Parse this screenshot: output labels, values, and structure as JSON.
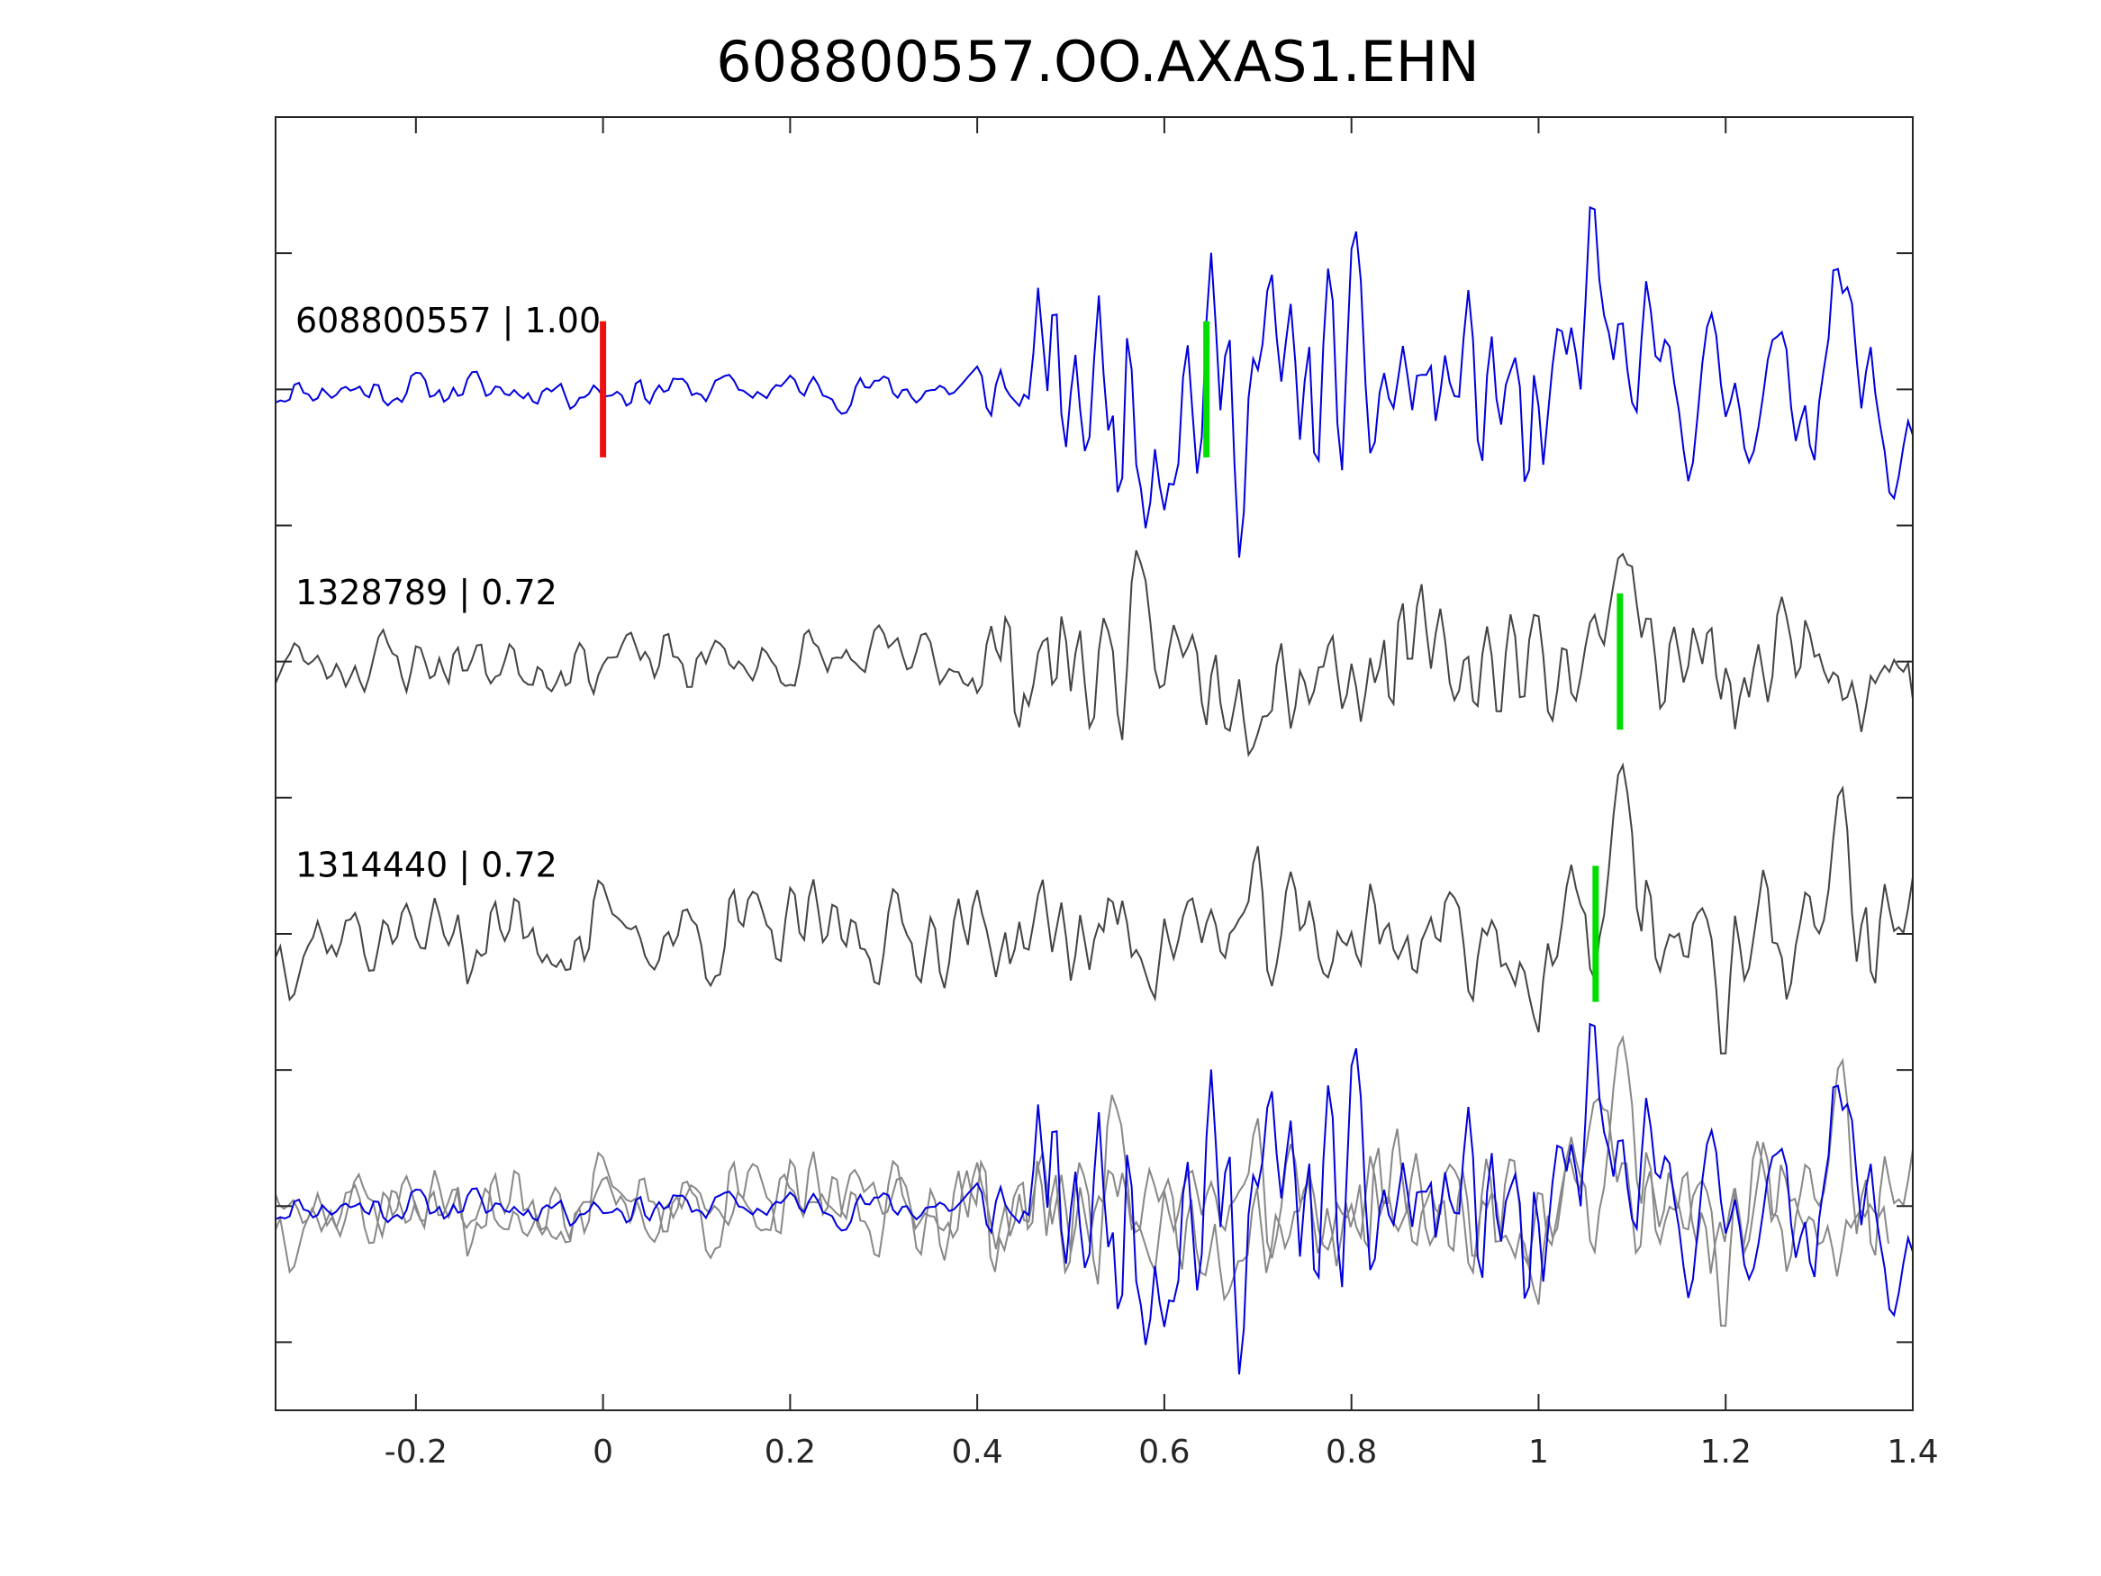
{
  "chart_data": {
    "type": "line",
    "title": "608800557.OO.AXAS1.EHN",
    "xlabel": "",
    "ylabel": "",
    "xlim": [
      -0.35,
      1.4
    ],
    "ylim": [
      0,
      9.5
    ],
    "xticks": [
      -0.2,
      0,
      0.2,
      0.4,
      0.6,
      0.8,
      1,
      1.2,
      1.4
    ],
    "xtick_labels": [
      "-0.2",
      "0",
      "0.2",
      "0.4",
      "0.6",
      "0.8",
      "1",
      "1.2",
      "1.4"
    ],
    "yticks": [
      0.5,
      1.5,
      2.5,
      3.5,
      4.5,
      5.5,
      6.5,
      7.5,
      8.5
    ],
    "grid": false,
    "colors": {
      "template": "#0000dd",
      "neighbor": "#444444",
      "overlay_neighbor": "#888888",
      "origin_marker": "#ee1111",
      "pick_marker": "#00dd00",
      "axes": "#262626"
    },
    "traces": [
      {
        "label": "608800557 | 1.00",
        "baseline": 7.5,
        "color_key": "template",
        "marker_origin": 0.0,
        "marker_pick": 0.645,
        "seed": 11,
        "profile": [
          [
            -0.35,
            0.12
          ],
          [
            0.38,
            0.12
          ],
          [
            0.42,
            0.3
          ],
          [
            0.48,
            0.75
          ],
          [
            0.6,
            0.95
          ],
          [
            0.8,
            0.8
          ],
          [
            0.95,
            0.7
          ],
          [
            1.0,
            0.8
          ],
          [
            1.08,
            0.6
          ],
          [
            1.2,
            0.45
          ],
          [
            1.4,
            0.5
          ]
        ],
        "events": [
          [
            1.06,
            0.9,
            0.012
          ],
          [
            1.0,
            -0.85,
            0.012
          ],
          [
            1.32,
            0.75,
            0.01
          ],
          [
            1.38,
            -0.55,
            0.01
          ]
        ]
      },
      {
        "label": "1328789 | 0.72",
        "baseline": 5.5,
        "color_key": "neighbor",
        "marker_pick": 1.087,
        "seed": 23,
        "profile": [
          [
            -0.35,
            0.22
          ],
          [
            0.38,
            0.22
          ],
          [
            0.45,
            0.5
          ],
          [
            0.55,
            0.55
          ],
          [
            0.8,
            0.45
          ],
          [
            1.0,
            0.4
          ],
          [
            1.2,
            0.4
          ],
          [
            1.4,
            0.35
          ]
        ],
        "events": [
          [
            1.09,
            1.0,
            0.012
          ],
          [
            1.3,
            0.35,
            0.02
          ],
          [
            1.34,
            -0.3,
            0.015
          ],
          [
            1.21,
            -0.5,
            0.01
          ]
        ]
      },
      {
        "label": "1314440 | 0.72",
        "baseline": 3.5,
        "color_key": "neighbor",
        "marker_pick": 1.061,
        "seed": 37,
        "profile": [
          [
            -0.35,
            0.35
          ],
          [
            0.38,
            0.3
          ],
          [
            0.5,
            0.4
          ],
          [
            0.8,
            0.45
          ],
          [
            1.0,
            0.4
          ],
          [
            1.2,
            0.5
          ],
          [
            1.4,
            0.4
          ]
        ],
        "events": [
          [
            1.09,
            0.95,
            0.012
          ],
          [
            1.0,
            -0.7,
            0.01
          ],
          [
            1.32,
            0.9,
            0.01
          ],
          [
            1.19,
            -0.6,
            0.01
          ]
        ]
      }
    ],
    "overlay": {
      "baseline": 1.5,
      "shifts": [
        0.0,
        -0.026,
        0.0
      ]
    }
  }
}
